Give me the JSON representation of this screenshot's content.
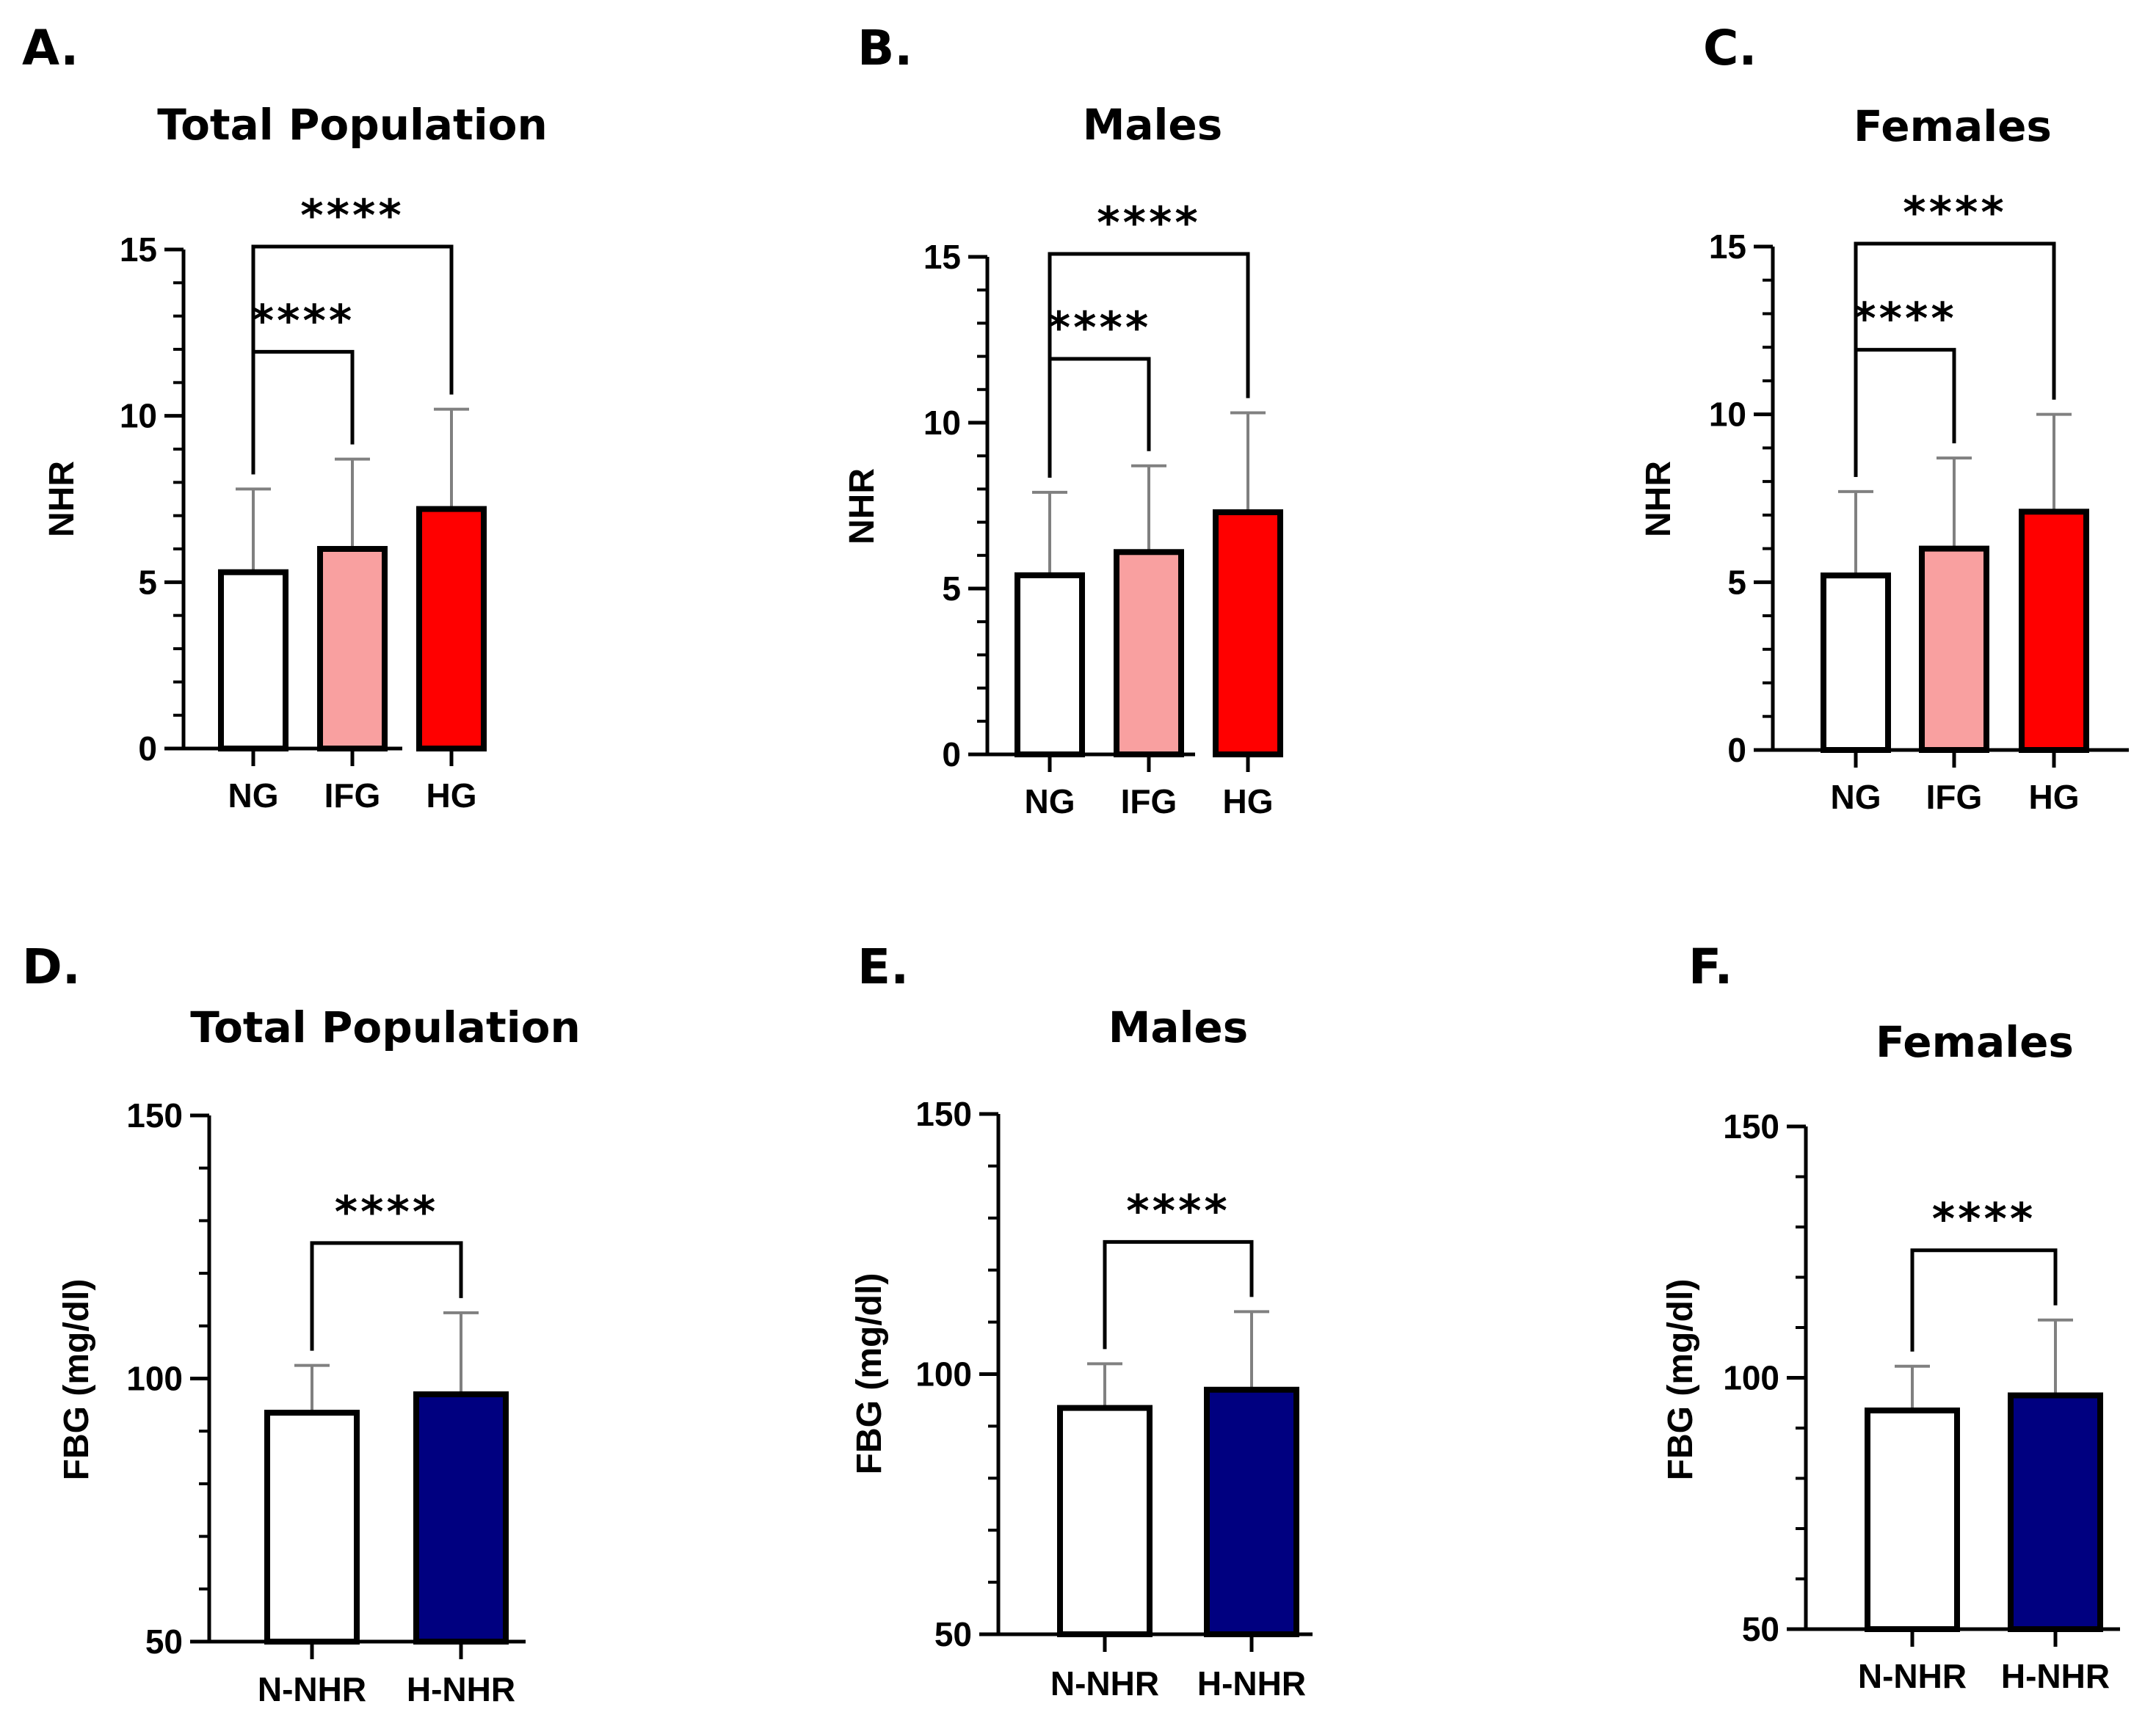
{
  "colors": {
    "NG": "#ffffff",
    "IFG": "#f9a0a0",
    "HG": "#ff0000",
    "N-NHR": "#ffffff",
    "H-NHR": "#000080",
    "error": "#808080",
    "axis": "#000000"
  },
  "chart_data": [
    {
      "type": "bar",
      "letter": "A.",
      "title": "Total Population",
      "ylabel": "NHR",
      "categories": [
        "NG",
        "IFG",
        "HG"
      ],
      "values": [
        5.3,
        6.0,
        7.2
      ],
      "errors": [
        2.5,
        2.7,
        3.0
      ],
      "ylim": [
        0,
        15
      ],
      "yticks": [
        0,
        5,
        10,
        15
      ],
      "brackets": [
        {
          "from": 0,
          "to": 1,
          "label": "****"
        },
        {
          "from": 0,
          "to": 2,
          "label": "****"
        }
      ]
    },
    {
      "type": "bar",
      "letter": "B.",
      "title": "Males",
      "ylabel": "NHR",
      "categories": [
        "NG",
        "IFG",
        "HG"
      ],
      "values": [
        5.4,
        6.1,
        7.3
      ],
      "errors": [
        2.5,
        2.6,
        3.0
      ],
      "ylim": [
        0,
        15
      ],
      "yticks": [
        0,
        5,
        10,
        15
      ],
      "brackets": [
        {
          "from": 0,
          "to": 1,
          "label": "****"
        },
        {
          "from": 0,
          "to": 2,
          "label": "****"
        }
      ]
    },
    {
      "type": "bar",
      "letter": "C.",
      "title": "Females",
      "ylabel": "NHR",
      "categories": [
        "NG",
        "IFG",
        "HG"
      ],
      "values": [
        5.2,
        6.0,
        7.1
      ],
      "errors": [
        2.5,
        2.7,
        2.9
      ],
      "ylim": [
        0,
        15
      ],
      "yticks": [
        0,
        5,
        10,
        15
      ],
      "brackets": [
        {
          "from": 0,
          "to": 1,
          "label": "****"
        },
        {
          "from": 0,
          "to": 2,
          "label": "****"
        }
      ]
    },
    {
      "type": "bar",
      "letter": "D.",
      "title": "Total Population",
      "ylabel": "FBG (mg/dl)",
      "categories": [
        "N-NHR",
        "H-NHR"
      ],
      "values": [
        93.5,
        97.0
      ],
      "errors": [
        9.0,
        15.5
      ],
      "ylim": [
        50,
        150
      ],
      "yticks": [
        50,
        100,
        150
      ],
      "brackets": [
        {
          "from": 0,
          "to": 1,
          "label": "****"
        }
      ]
    },
    {
      "type": "bar",
      "letter": "E.",
      "title": "Males",
      "ylabel": "FBG (mg/dl)",
      "categories": [
        "N-NHR",
        "H-NHR"
      ],
      "values": [
        93.5,
        97.0
      ],
      "errors": [
        8.5,
        15.0
      ],
      "ylim": [
        50,
        150
      ],
      "yticks": [
        50,
        100,
        150
      ],
      "brackets": [
        {
          "from": 0,
          "to": 1,
          "label": "****"
        }
      ]
    },
    {
      "type": "bar",
      "letter": "F.",
      "title": "Females",
      "ylabel": "FBG (mg/dl)",
      "categories": [
        "N-NHR",
        "H-NHR"
      ],
      "values": [
        93.5,
        96.5
      ],
      "errors": [
        8.8,
        15.0
      ],
      "ylim": [
        50,
        150
      ],
      "yticks": [
        50,
        100,
        150
      ],
      "brackets": [
        {
          "from": 0,
          "to": 1,
          "label": "****"
        }
      ]
    }
  ]
}
